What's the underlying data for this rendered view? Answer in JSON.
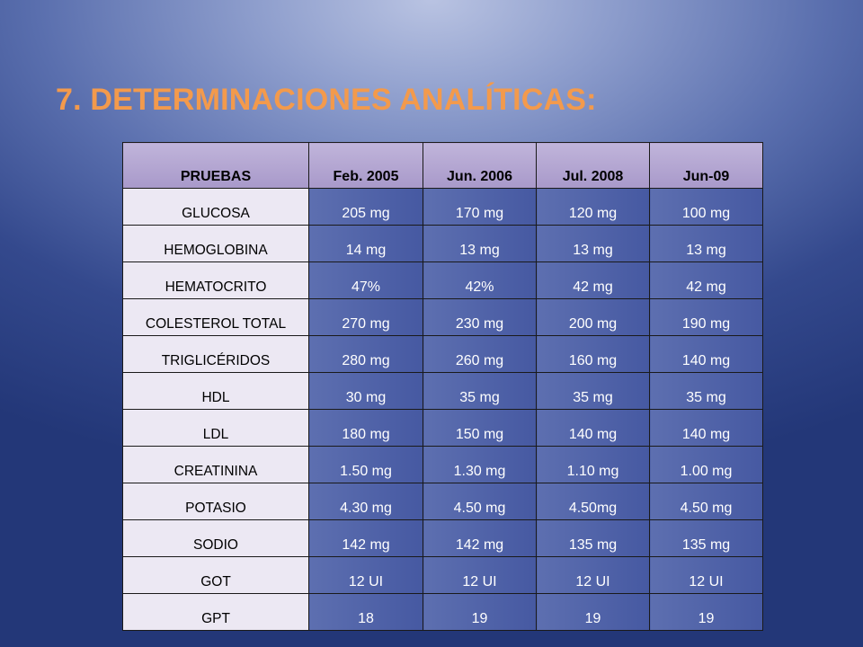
{
  "title": "7. DETERMINACIONES ANALÍTICAS:",
  "colors": {
    "title": "#f39a4c",
    "header_bg": "#b3a7d2",
    "label_bg": "#ece8f3",
    "value_bg": "#5465aa"
  },
  "table": {
    "headers": [
      "PRUEBAS",
      "Feb. 2005",
      "Jun. 2006",
      "Jul. 2008",
      "Jun-09"
    ],
    "rows": [
      [
        "GLUCOSA",
        "205 mg",
        "170 mg",
        "120 mg",
        "100 mg"
      ],
      [
        "HEMOGLOBINA",
        "14 mg",
        "13 mg",
        "13 mg",
        "13 mg"
      ],
      [
        "HEMATOCRITO",
        "47%",
        "42%",
        "42 mg",
        "42 mg"
      ],
      [
        "COLESTEROL TOTAL",
        "270 mg",
        "230 mg",
        "200 mg",
        "190 mg"
      ],
      [
        "TRIGLICÉRIDOS",
        "280 mg",
        "260 mg",
        "160 mg",
        "140 mg"
      ],
      [
        "HDL",
        "30 mg",
        "35 mg",
        "35 mg",
        "35 mg"
      ],
      [
        "LDL",
        "180 mg",
        "150 mg",
        "140 mg",
        "140 mg"
      ],
      [
        "CREATININA",
        "1.50 mg",
        "1.30 mg",
        "1.10 mg",
        "1.00 mg"
      ],
      [
        "POTASIO",
        "4.30 mg",
        "4.50 mg",
        "4.50mg",
        "4.50 mg"
      ],
      [
        "SODIO",
        "142 mg",
        "142 mg",
        "135 mg",
        "135 mg"
      ],
      [
        "GOT",
        "12 UI",
        "12 UI",
        "12 UI",
        "12 UI"
      ],
      [
        "GPT",
        "18",
        "19",
        "19",
        "19"
      ]
    ]
  }
}
